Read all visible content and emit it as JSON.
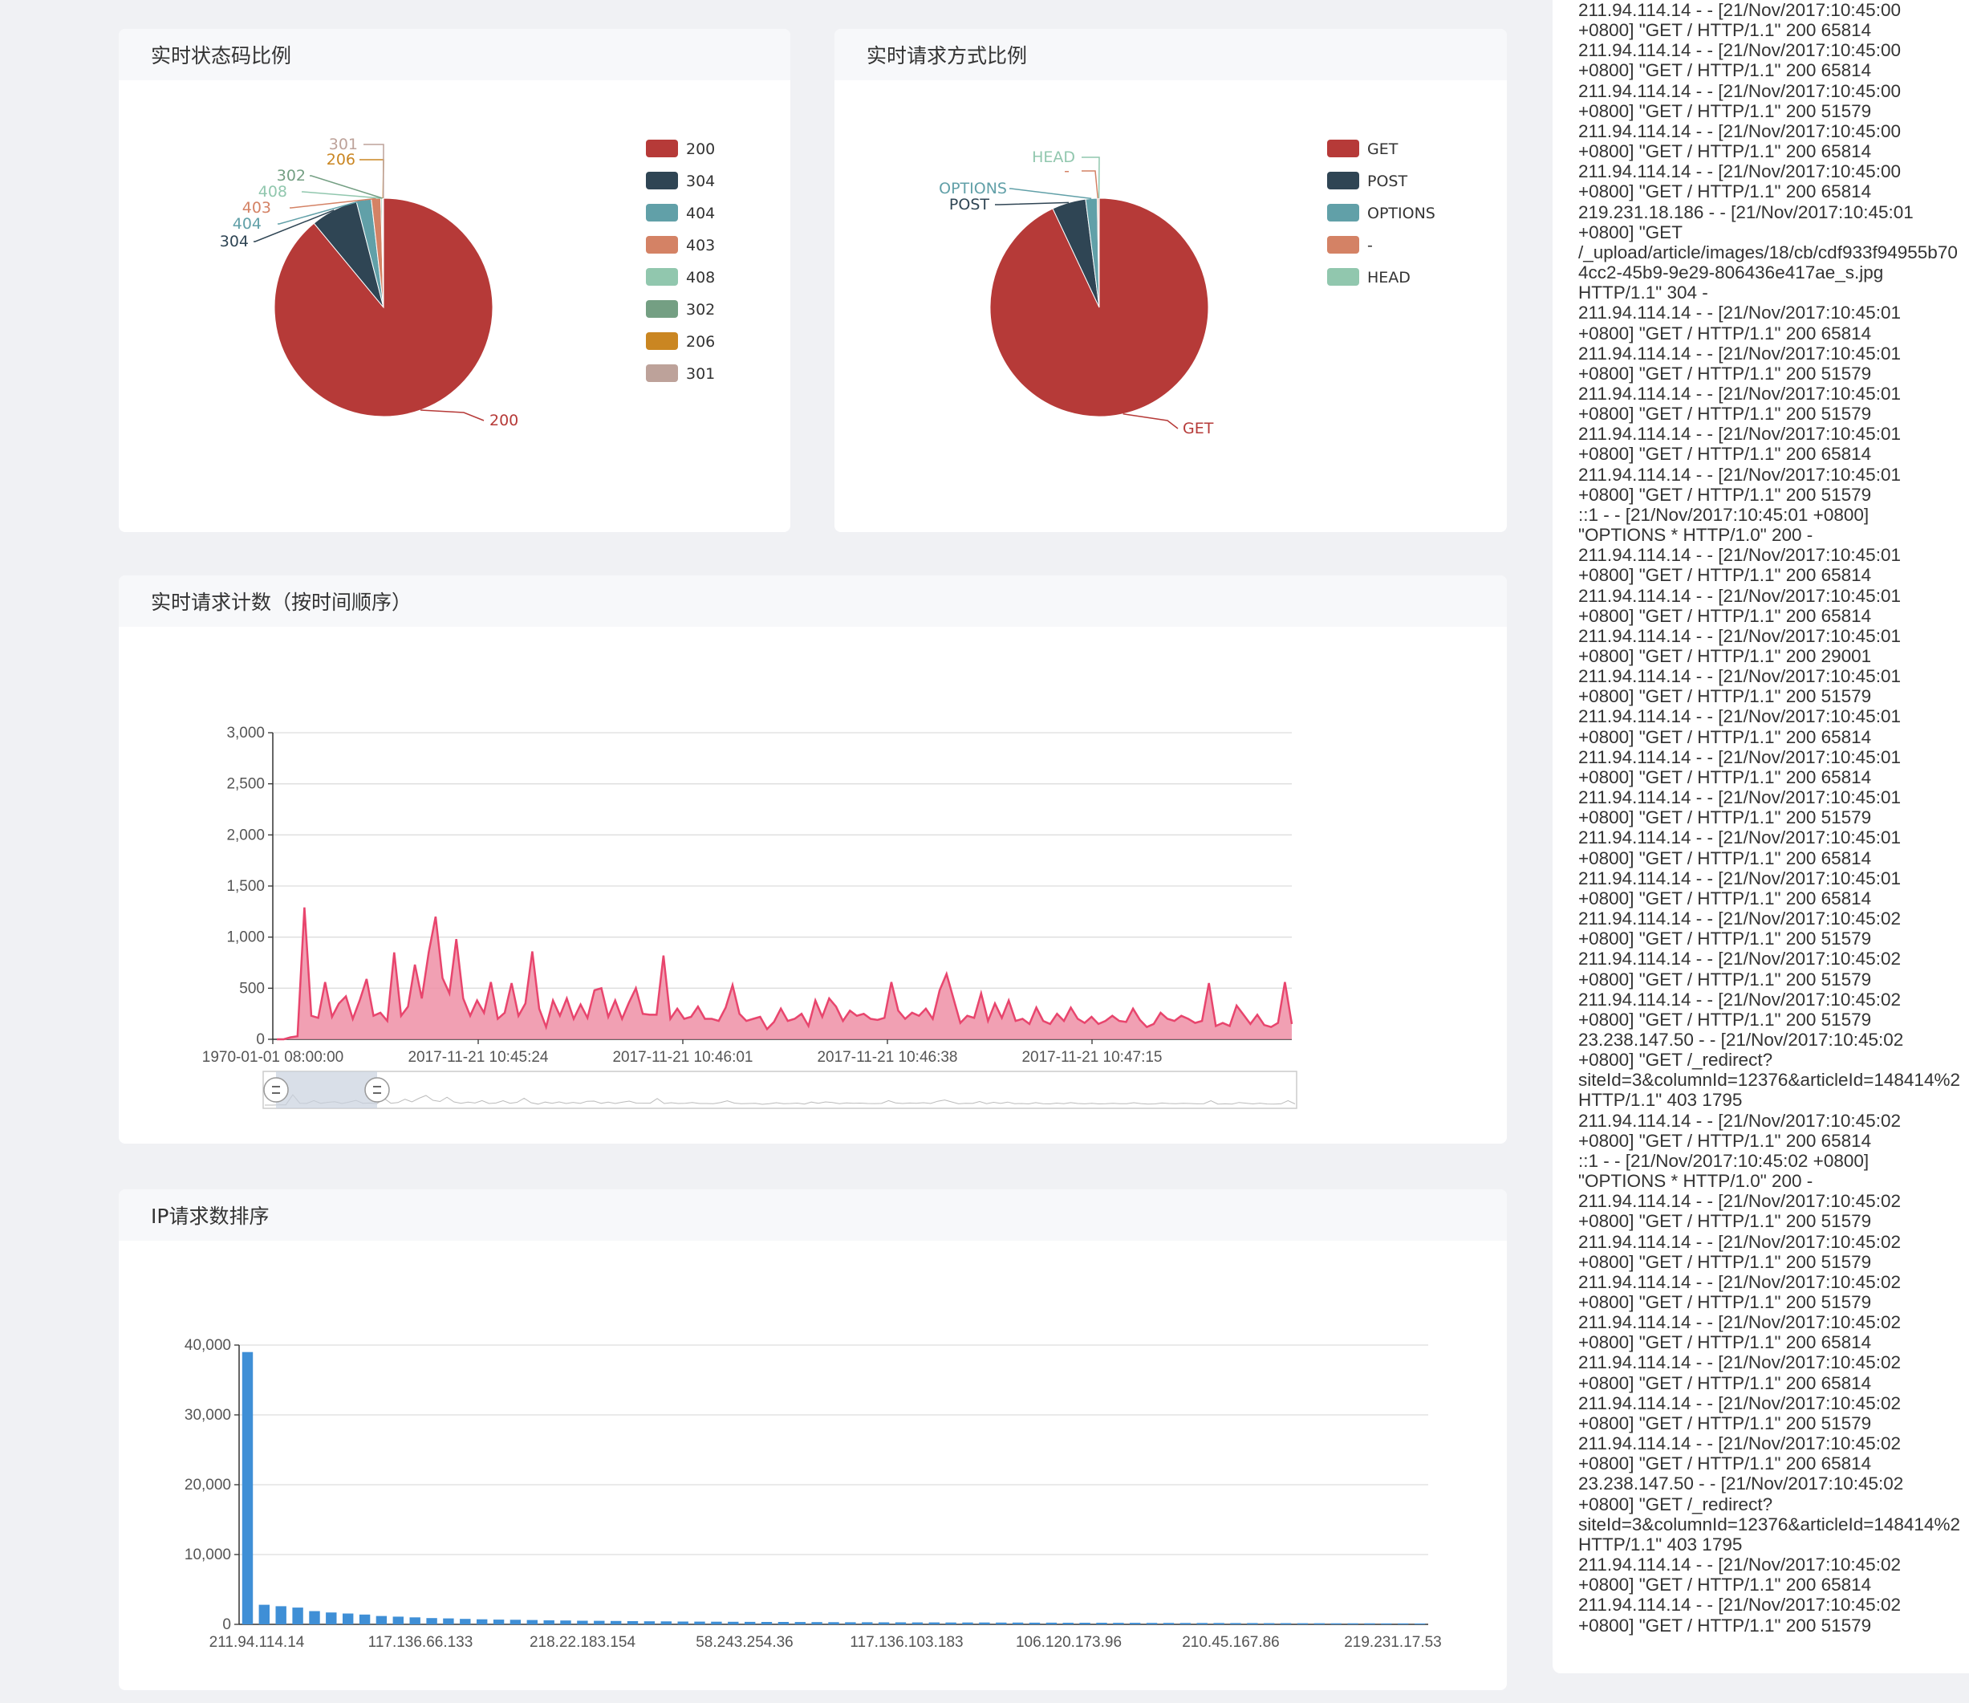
{
  "colors": {
    "palette": [
      "#b63a38",
      "#2f4554",
      "#61a0a8",
      "#d48265",
      "#91c7ae",
      "#749f83",
      "#ca8622",
      "#bda29a"
    ],
    "line_stroke": "#e8456d",
    "line_fill": "#ef8fa6",
    "bar": "#3f8fd6"
  },
  "panels": {
    "status_title": "实时状态码比例",
    "method_title": "实时请求方式比例",
    "count_title": "实时请求计数（按时间顺序）",
    "ip_title": "IP请求数排序"
  },
  "chart_data": [
    {
      "type": "pie",
      "title": "实时状态码比例",
      "labels": [
        "200",
        "304",
        "404",
        "403",
        "408",
        "302",
        "206",
        "301"
      ],
      "values": [
        89.0,
        7.0,
        2.2,
        1.4,
        0.2,
        0.1,
        0.05,
        0.05
      ],
      "legend": "right"
    },
    {
      "type": "pie",
      "title": "实时请求方式比例",
      "labels": [
        "GET",
        "POST",
        "OPTIONS",
        "-",
        "HEAD"
      ],
      "values": [
        93.0,
        5.0,
        1.7,
        0.2,
        0.1
      ],
      "legend": "right"
    },
    {
      "type": "area",
      "title": "实时请求计数（按时间顺序）",
      "ylim": [
        0,
        3000
      ],
      "yticks": [
        "0",
        "500",
        "1,000",
        "1,500",
        "2,000",
        "2,500",
        "3,000"
      ],
      "xticks": [
        "1970-01-01 08:00:00",
        "2017-11-21 10:45:24",
        "2017-11-21 10:46:01",
        "2017-11-21 10:46:38",
        "2017-11-21 10:47:15"
      ],
      "values": [
        0,
        0,
        20,
        30,
        1290,
        230,
        210,
        560,
        220,
        350,
        420,
        200,
        380,
        590,
        230,
        260,
        180,
        850,
        230,
        320,
        730,
        400,
        850,
        1200,
        600,
        450,
        980,
        400,
        230,
        380,
        260,
        560,
        200,
        260,
        550,
        230,
        350,
        860,
        300,
        120,
        380,
        230,
        400,
        200,
        340,
        210,
        480,
        500,
        220,
        380,
        200,
        360,
        500,
        250,
        240,
        240,
        820,
        200,
        300,
        200,
        220,
        320,
        200,
        200,
        180,
        310,
        530,
        250,
        180,
        200,
        220,
        100,
        170,
        300,
        180,
        200,
        250,
        130,
        380,
        220,
        400,
        320,
        180,
        280,
        230,
        250,
        200,
        190,
        210,
        560,
        280,
        200,
        260,
        230,
        300,
        200,
        480,
        640,
        400,
        160,
        230,
        210,
        450,
        180,
        350,
        210,
        380,
        180,
        200,
        150,
        310,
        180,
        150,
        250,
        180,
        310,
        200,
        160,
        220,
        150,
        180,
        230,
        180,
        170,
        300,
        190,
        120,
        150,
        260,
        200,
        180,
        230,
        200,
        160,
        180,
        550,
        130,
        160,
        130,
        330,
        240,
        150,
        240,
        140,
        120,
        160,
        560,
        150
      ],
      "grid": true
    },
    {
      "type": "bar",
      "title": "IP请求数排序",
      "ylim": [
        0,
        40000
      ],
      "yticks": [
        "0",
        "10,000",
        "20,000",
        "30,000",
        "40,000"
      ],
      "xticks": [
        "211.94.114.14",
        "117.136.66.133",
        "218.22.183.154",
        "58.243.254.36",
        "117.136.103.183",
        "106.120.173.96",
        "210.45.167.86",
        "219.231.17.53"
      ],
      "values": [
        39000,
        2800,
        2600,
        2400,
        1900,
        1700,
        1550,
        1400,
        1200,
        1100,
        1000,
        900,
        850,
        780,
        720,
        680,
        650,
        620,
        580,
        550,
        520,
        500,
        480,
        460,
        440,
        420,
        400,
        390,
        380,
        370,
        360,
        350,
        340,
        330,
        320,
        310,
        300,
        295,
        290,
        285,
        280,
        275,
        270,
        265,
        260,
        255,
        250,
        245,
        240,
        235,
        230,
        225,
        220,
        215,
        210,
        205,
        200,
        195,
        190,
        185,
        180,
        175,
        170,
        165,
        160,
        155,
        150,
        145,
        140,
        135,
        130
      ],
      "grid": true
    }
  ],
  "log_lines": [
    "211.94.114.14 - - [21/Nov/2017:10:45:00",
    "+0800] \"GET / HTTP/1.1\" 200 65814",
    "211.94.114.14 - - [21/Nov/2017:10:45:00",
    "+0800] \"GET / HTTP/1.1\" 200 65814",
    "211.94.114.14 - - [21/Nov/2017:10:45:00",
    "+0800] \"GET / HTTP/1.1\" 200 51579",
    "211.94.114.14 - - [21/Nov/2017:10:45:00",
    "+0800] \"GET / HTTP/1.1\" 200 65814",
    "211.94.114.14 - - [21/Nov/2017:10:45:00",
    "+0800] \"GET / HTTP/1.1\" 200 65814",
    "219.231.18.186 - - [21/Nov/2017:10:45:01",
    "+0800] \"GET",
    "/_upload/article/images/18/cb/cdf933f94955b70",
    "4cc2-45b9-9e29-806436e417ae_s.jpg",
    "HTTP/1.1\" 304 -",
    "211.94.114.14 - - [21/Nov/2017:10:45:01",
    "+0800] \"GET / HTTP/1.1\" 200 65814",
    "211.94.114.14 - - [21/Nov/2017:10:45:01",
    "+0800] \"GET / HTTP/1.1\" 200 51579",
    "211.94.114.14 - - [21/Nov/2017:10:45:01",
    "+0800] \"GET / HTTP/1.1\" 200 51579",
    "211.94.114.14 - - [21/Nov/2017:10:45:01",
    "+0800] \"GET / HTTP/1.1\" 200 65814",
    "211.94.114.14 - - [21/Nov/2017:10:45:01",
    "+0800] \"GET / HTTP/1.1\" 200 51579",
    "::1 - - [21/Nov/2017:10:45:01 +0800]",
    "\"OPTIONS * HTTP/1.0\" 200 -",
    "211.94.114.14 - - [21/Nov/2017:10:45:01",
    "+0800] \"GET / HTTP/1.1\" 200 65814",
    "211.94.114.14 - - [21/Nov/2017:10:45:01",
    "+0800] \"GET / HTTP/1.1\" 200 65814",
    "211.94.114.14 - - [21/Nov/2017:10:45:01",
    "+0800] \"GET / HTTP/1.1\" 200 29001",
    "211.94.114.14 - - [21/Nov/2017:10:45:01",
    "+0800] \"GET / HTTP/1.1\" 200 51579",
    "211.94.114.14 - - [21/Nov/2017:10:45:01",
    "+0800] \"GET / HTTP/1.1\" 200 65814",
    "211.94.114.14 - - [21/Nov/2017:10:45:01",
    "+0800] \"GET / HTTP/1.1\" 200 65814",
    "211.94.114.14 - - [21/Nov/2017:10:45:01",
    "+0800] \"GET / HTTP/1.1\" 200 51579",
    "211.94.114.14 - - [21/Nov/2017:10:45:01",
    "+0800] \"GET / HTTP/1.1\" 200 65814",
    "211.94.114.14 - - [21/Nov/2017:10:45:01",
    "+0800] \"GET / HTTP/1.1\" 200 65814",
    "211.94.114.14 - - [21/Nov/2017:10:45:02",
    "+0800] \"GET / HTTP/1.1\" 200 51579",
    "211.94.114.14 - - [21/Nov/2017:10:45:02",
    "+0800] \"GET / HTTP/1.1\" 200 51579",
    "211.94.114.14 - - [21/Nov/2017:10:45:02",
    "+0800] \"GET / HTTP/1.1\" 200 51579",
    "23.238.147.50 - - [21/Nov/2017:10:45:02",
    "+0800] \"GET /_redirect?",
    "siteId=3&columnId=12376&articleId=148414%2",
    "HTTP/1.1\" 403 1795",
    "211.94.114.14 - - [21/Nov/2017:10:45:02",
    "+0800] \"GET / HTTP/1.1\" 200 65814",
    "::1 - - [21/Nov/2017:10:45:02 +0800]",
    "\"OPTIONS * HTTP/1.0\" 200 -",
    "211.94.114.14 - - [21/Nov/2017:10:45:02",
    "+0800] \"GET / HTTP/1.1\" 200 51579",
    "211.94.114.14 - - [21/Nov/2017:10:45:02",
    "+0800] \"GET / HTTP/1.1\" 200 51579",
    "211.94.114.14 - - [21/Nov/2017:10:45:02",
    "+0800] \"GET / HTTP/1.1\" 200 51579",
    "211.94.114.14 - - [21/Nov/2017:10:45:02",
    "+0800] \"GET / HTTP/1.1\" 200 65814",
    "211.94.114.14 - - [21/Nov/2017:10:45:02",
    "+0800] \"GET / HTTP/1.1\" 200 65814",
    "211.94.114.14 - - [21/Nov/2017:10:45:02",
    "+0800] \"GET / HTTP/1.1\" 200 51579",
    "211.94.114.14 - - [21/Nov/2017:10:45:02",
    "+0800] \"GET / HTTP/1.1\" 200 65814",
    "23.238.147.50 - - [21/Nov/2017:10:45:02",
    "+0800] \"GET /_redirect?",
    "siteId=3&columnId=12376&articleId=148414%2",
    "HTTP/1.1\" 403 1795",
    "211.94.114.14 - - [21/Nov/2017:10:45:02",
    "+0800] \"GET / HTTP/1.1\" 200 65814",
    "211.94.114.14 - - [21/Nov/2017:10:45:02",
    "+0800] \"GET / HTTP/1.1\" 200 51579"
  ]
}
